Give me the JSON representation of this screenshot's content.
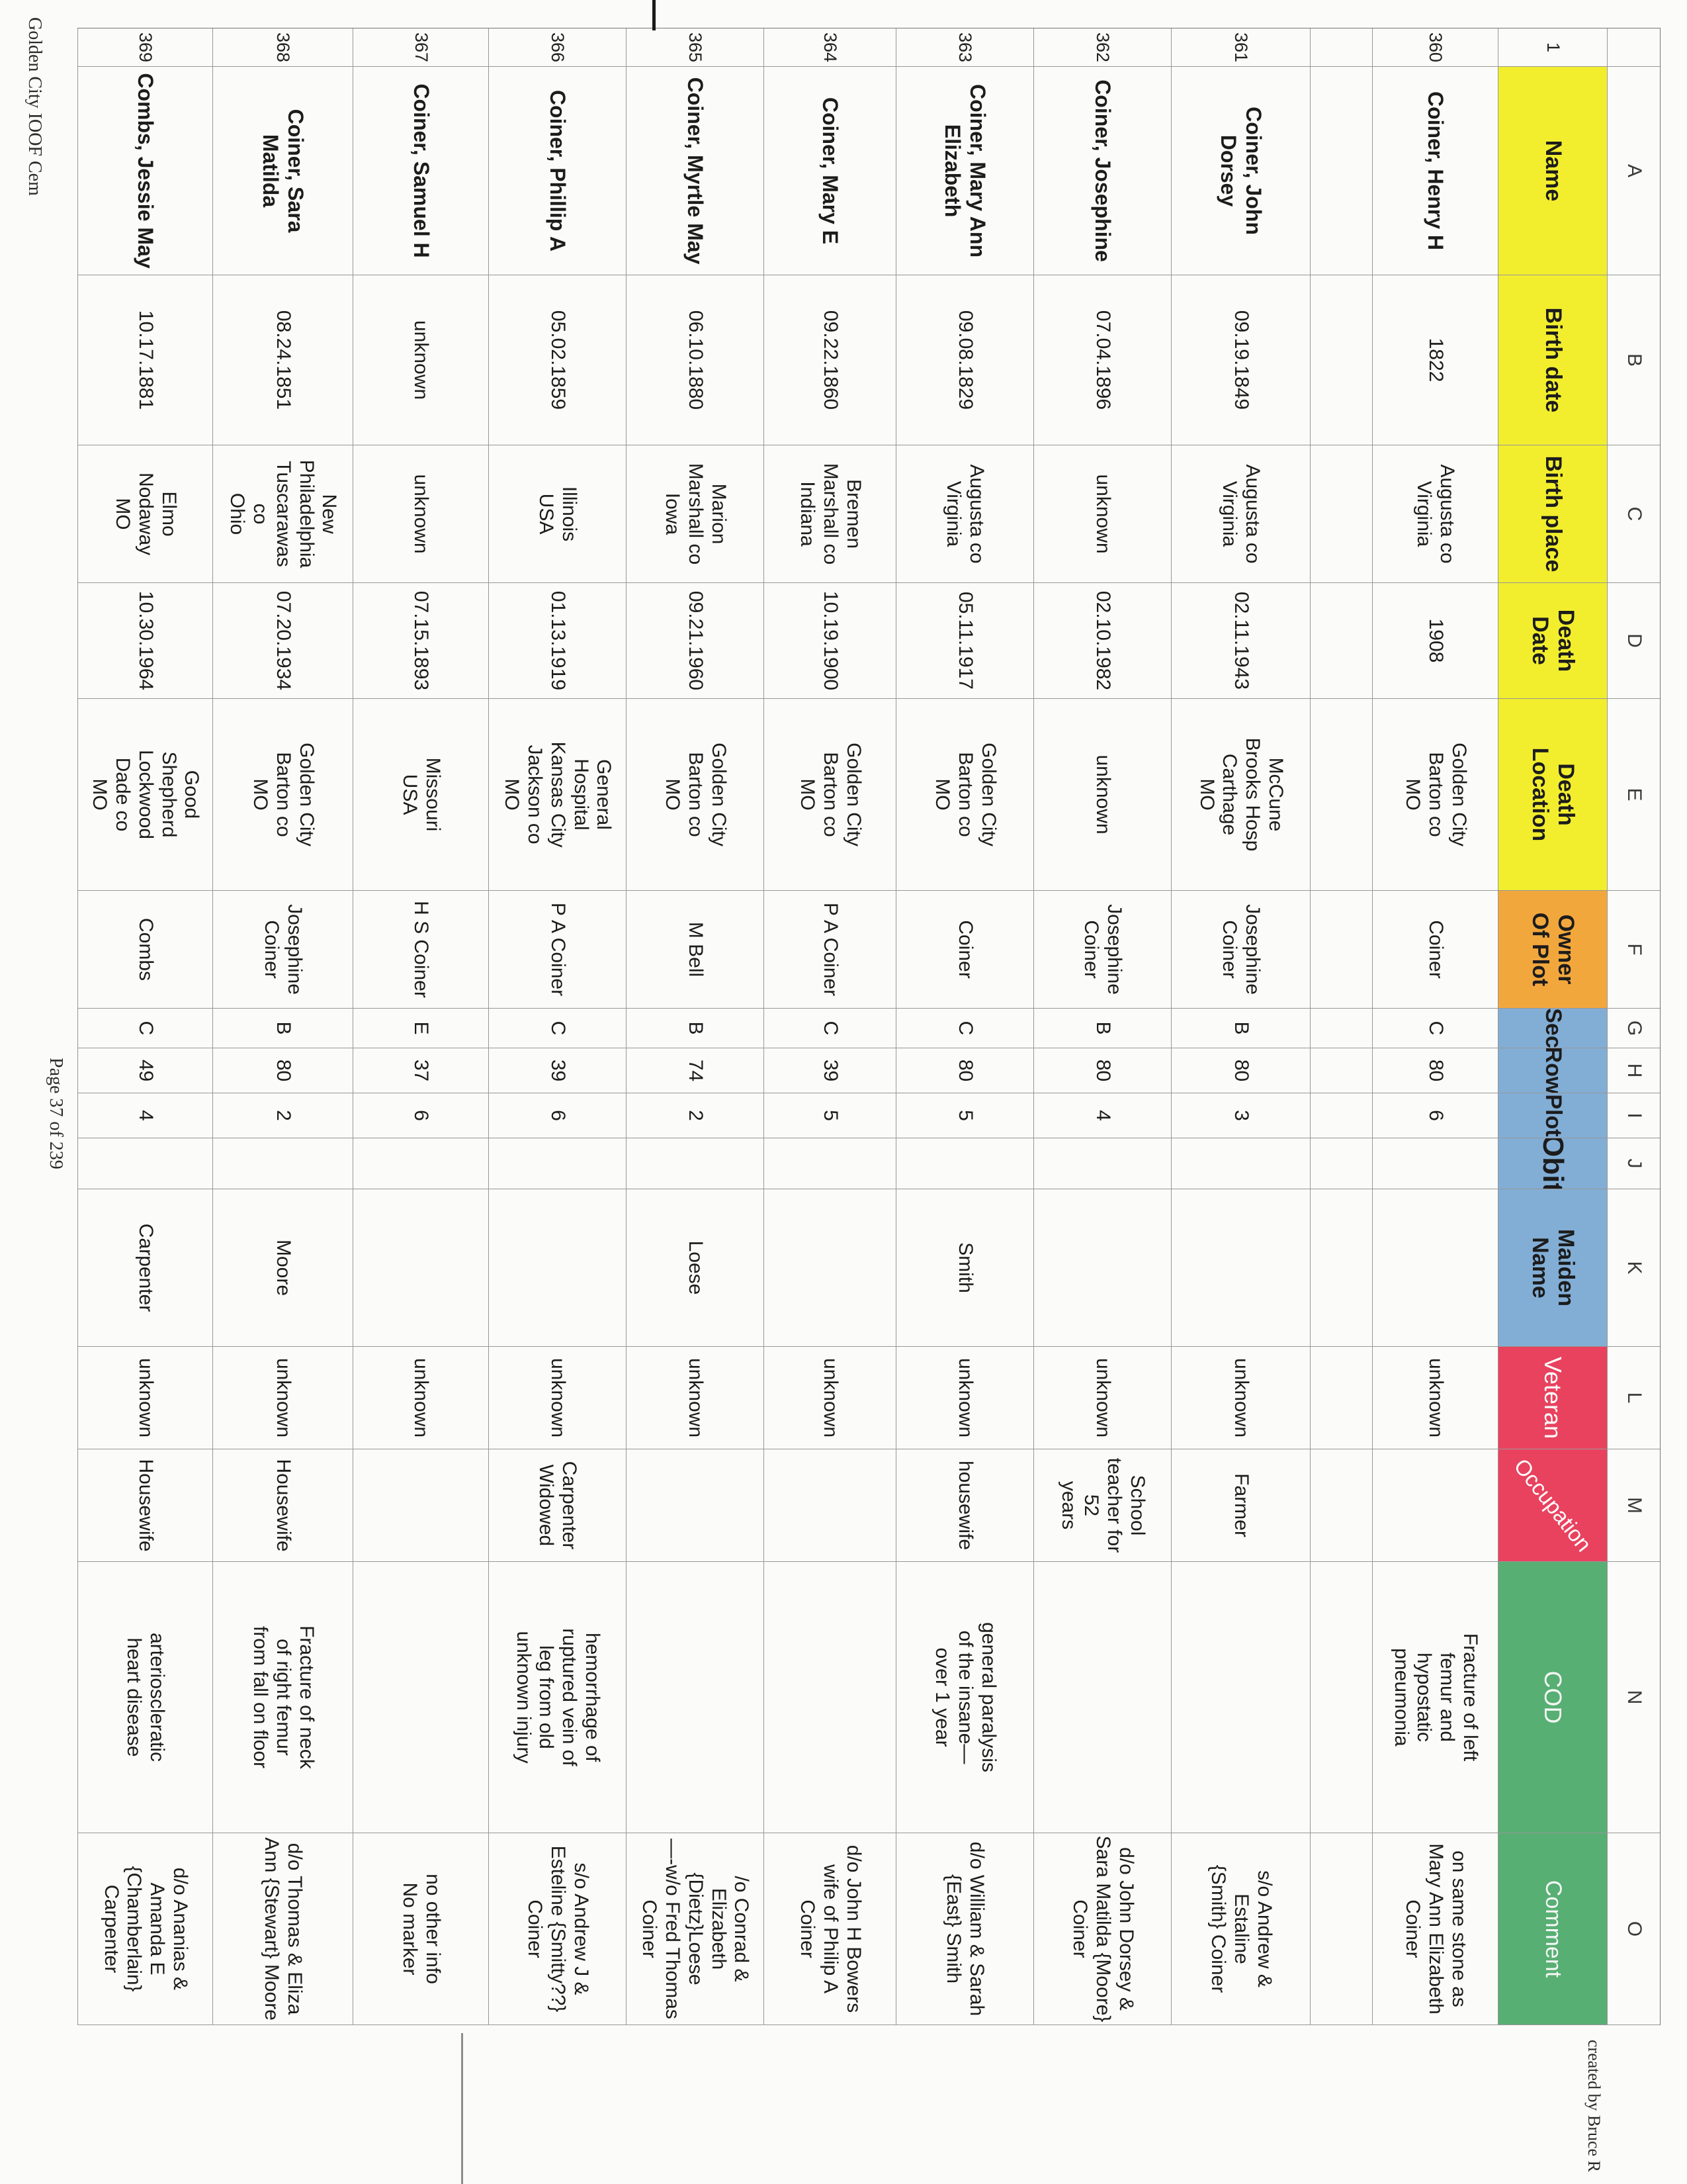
{
  "page": {
    "footer_left": "Golden City IOOF Cem",
    "footer_center": "Page 37 of 239",
    "header_right": "created by Bruce R"
  },
  "sheet": {
    "corner_row_number": "1",
    "column_letters": [
      "A",
      "B",
      "C",
      "D",
      "E",
      "F",
      "G",
      "H",
      "I",
      "J",
      "K",
      "L",
      "M",
      "N",
      "O"
    ],
    "headers": {
      "name": "Name",
      "birth_date": "Birth date",
      "birth_place": "Birth place",
      "death_date": "Death Date",
      "death_location": "Death\nLocation",
      "owner": "Owner\nOf Plot",
      "sec": "Sec",
      "row": "Row",
      "plot": "Plot",
      "obit": "Obit",
      "maiden": "Maiden\nName",
      "veteran": "Veteran",
      "occupation": "Occupation",
      "cod": "COD",
      "comment": "Comment"
    },
    "header_colors": {
      "yellow": "#f2ee2e",
      "orange": "#f2a73d",
      "blue": "#82aed6",
      "red": "#e8425e",
      "green": "#57af73"
    },
    "records": [
      {
        "num": "360",
        "name": "Coiner, Henry H",
        "birth_date": "1822",
        "birth_place": "Augusta co\nVirginia",
        "death_date": "1908",
        "death_location": "Golden City\nBarton co\nMO",
        "owner": "Coiner",
        "sec": "C",
        "row": "80",
        "plot": "6",
        "obit": "",
        "maiden": "",
        "veteran": "unknown",
        "occupation": "",
        "cod": "Fracture of left\nfemur and\nhypostatic\npneumonia",
        "comment": "on same stone as\nMary Ann Elizabeth\nCoiner"
      },
      {
        "num": "",
        "name": "",
        "birth_date": "",
        "birth_place": "",
        "death_date": "",
        "death_location": "",
        "owner": "",
        "sec": "",
        "row": "",
        "plot": "",
        "obit": "",
        "maiden": "",
        "veteran": "",
        "occupation": "",
        "cod": "",
        "comment": ""
      },
      {
        "num": "361",
        "name": "Coiner, John\nDorsey",
        "birth_date": "09.19.1849",
        "birth_place": "Augusta co\nVirginia",
        "death_date": "02.11.1943",
        "death_location": "McCune\nBrooks Hosp\nCarthage\nMO",
        "owner": "Josephine\nCoiner",
        "sec": "B",
        "row": "80",
        "plot": "3",
        "obit": "",
        "maiden": "",
        "veteran": "unknown",
        "occupation": "Farmer",
        "cod": "",
        "comment": "s/o Andrew & Estaline\n{Smith} Coiner"
      },
      {
        "num": "362",
        "name": "Coiner, Josephine",
        "birth_date": "07.04.1896",
        "birth_place": "unknown",
        "death_date": "02.10.1982",
        "death_location": "unknown",
        "owner": "Josephine\nCoiner",
        "sec": "B",
        "row": "80",
        "plot": "4",
        "obit": "",
        "maiden": "",
        "veteran": "unknown",
        "occupation": "School\nteacher for 52\nyears",
        "cod": "",
        "comment": "d/o John Dorsey &\nSara Matilda {Moore}\nCoiner"
      },
      {
        "num": "363",
        "name": "Coiner, Mary Ann\nElizabeth",
        "birth_date": "09.08.1829",
        "birth_place": "Augusta co\nVirginia",
        "death_date": "05.11.1917",
        "death_location": "Golden City\nBarton co\nMO",
        "owner": "Coiner",
        "sec": "C",
        "row": "80",
        "plot": "5",
        "obit": "",
        "maiden": "Smith",
        "veteran": "unknown",
        "occupation": "housewife",
        "cod": "general paralysis\nof the insane—\nover 1 year",
        "comment": "d/o William & Sarah\n{East} Smith"
      },
      {
        "num": "364",
        "name": "Coiner, Mary E",
        "birth_date": "09.22.1860",
        "birth_place": "Bremen\nMarshall co\nIndiana",
        "death_date": "10.19.1900",
        "death_location": "Golden City\nBarton co\nMO",
        "owner": "P A Coiner",
        "sec": "C",
        "row": "39",
        "plot": "5",
        "obit": "",
        "maiden": "",
        "veteran": "unknown",
        "occupation": "",
        "cod": "",
        "comment": "d/o John H Bowers\nwife of Philip A Coiner"
      },
      {
        "num": "365",
        "name": "Coiner, Myrtle May",
        "birth_date": "06.10.1880",
        "birth_place": "Marion\nMarshall co\nIowa",
        "death_date": "09.21.1960",
        "death_location": "Golden City\nBarton co\nMO",
        "owner": "M Bell",
        "sec": "B",
        "row": "74",
        "plot": "2",
        "obit": "",
        "maiden": "Loese",
        "veteran": "unknown",
        "occupation": "",
        "cod": "",
        "comment": "/o Conrad & Elizabeth\n{Dietz}Loese\n—-w/o Fred Thomas\nCoiner"
      },
      {
        "num": "366",
        "name": "Coiner, Phillip A",
        "birth_date": "05.02.1859",
        "birth_place": "Illinois\nUSA",
        "death_date": "01.13.1919",
        "death_location": "General\nHospital\nKansas City\nJackson co\nMO",
        "owner": "P A Coiner",
        "sec": "C",
        "row": "39",
        "plot": "6",
        "obit": "",
        "maiden": "",
        "veteran": "unknown",
        "occupation": "Carpenter\nWidowed",
        "cod": "hemorrhage of\nruptured vein of\nleg from old\nunknown injury",
        "comment": "s/o Andrew J &\nEsteline {Smitty??}\nCoiner"
      },
      {
        "num": "367",
        "name": "Coiner, Samuel H",
        "birth_date": "unknown",
        "birth_place": "unknown",
        "death_date": "07.15.1893",
        "death_location": "Missouri\nUSA",
        "owner": "H S Coiner",
        "sec": "E",
        "row": "37",
        "plot": "6",
        "obit": "",
        "maiden": "",
        "veteran": "unknown",
        "occupation": "",
        "cod": "",
        "comment": "no other info\nNo marker"
      },
      {
        "num": "368",
        "name": "Coiner, Sara\nMatilda",
        "birth_date": "08.24.1851",
        "birth_place": "New\nPhiladelphia\nTuscarawas\nco\nOhio",
        "death_date": "07.20.1934",
        "death_location": "Golden City\nBarton co\nMO",
        "owner": "Josephine\nCoiner",
        "sec": "B",
        "row": "80",
        "plot": "2",
        "obit": "",
        "maiden": "Moore",
        "veteran": "unknown",
        "occupation": "Housewife",
        "cod": "Fracture of neck\nof right femur\nfrom fall on floor",
        "comment": "d/o Thomas & Eliza\nAnn {Stewart} Moore"
      },
      {
        "num": "369",
        "name": "Combs, Jessie May",
        "birth_date": "10.17.1881",
        "birth_place": "Elmo\nNodaway\nMO",
        "death_date": "10.30.1964",
        "death_location": "Good\nShepherd\nLockwood\nDade co\nMO",
        "owner": "Combs",
        "sec": "C",
        "row": "49",
        "plot": "4",
        "obit": "",
        "maiden": "Carpenter",
        "veteran": "unknown",
        "occupation": "Housewife",
        "cod": "arterioscleratic\nheart disease",
        "comment": "d/o Ananias &\nAmanda E\n{Chamberlain}\nCarpenter"
      }
    ]
  }
}
